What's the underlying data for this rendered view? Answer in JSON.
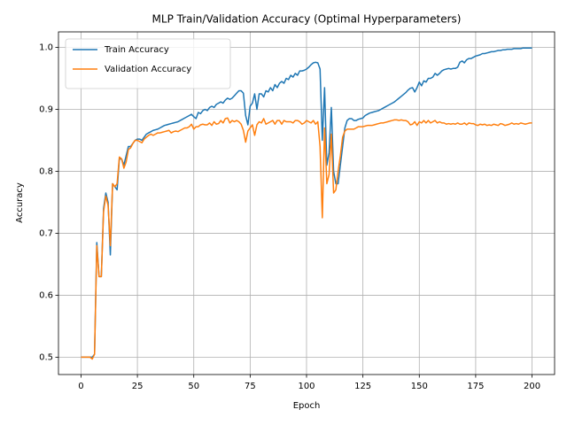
{
  "chart_data": {
    "type": "line",
    "title": "MLP Train/Validation Accuracy (Optimal Hyperparameters)",
    "x_label": "Epoch",
    "y_label": "Accuracy",
    "x": [
      0,
      1,
      2,
      3,
      4,
      5,
      6,
      7,
      8,
      9,
      10,
      11,
      12,
      13,
      14,
      15,
      16,
      17,
      18,
      19,
      20,
      21,
      22,
      23,
      24,
      25,
      26,
      27,
      28,
      29,
      30,
      31,
      32,
      33,
      34,
      35,
      36,
      37,
      38,
      39,
      40,
      41,
      42,
      43,
      44,
      45,
      46,
      47,
      48,
      49,
      50,
      51,
      52,
      53,
      54,
      55,
      56,
      57,
      58,
      59,
      60,
      61,
      62,
      63,
      64,
      65,
      66,
      67,
      68,
      69,
      70,
      71,
      72,
      73,
      74,
      75,
      76,
      77,
      78,
      79,
      80,
      81,
      82,
      83,
      84,
      85,
      86,
      87,
      88,
      89,
      90,
      91,
      92,
      93,
      94,
      95,
      96,
      97,
      98,
      99,
      100,
      101,
      102,
      103,
      104,
      105,
      106,
      107,
      108,
      109,
      110,
      111,
      112,
      113,
      114,
      115,
      116,
      117,
      118,
      119,
      120,
      121,
      122,
      123,
      124,
      125,
      126,
      127,
      128,
      129,
      130,
      131,
      132,
      133,
      134,
      135,
      136,
      137,
      138,
      139,
      140,
      141,
      142,
      143,
      144,
      145,
      146,
      147,
      148,
      149,
      150,
      151,
      152,
      153,
      154,
      155,
      156,
      157,
      158,
      159,
      160,
      161,
      162,
      163,
      164,
      165,
      166,
      167,
      168,
      169,
      170,
      171,
      172,
      173,
      174,
      175,
      176,
      177,
      178,
      179,
      180,
      181,
      182,
      183,
      184,
      185,
      186,
      187,
      188,
      189,
      190,
      191,
      192,
      193,
      194,
      195,
      196,
      197,
      198,
      199,
      200
    ],
    "series": [
      {
        "name": "Train Accuracy",
        "color": "#1f77b4",
        "values": [
          0.5,
          0.5,
          0.5,
          0.5,
          0.5,
          0.5,
          0.505,
          0.685,
          0.63,
          0.63,
          0.74,
          0.765,
          0.75,
          0.665,
          0.78,
          0.775,
          0.77,
          0.82,
          0.82,
          0.81,
          0.825,
          0.84,
          0.84,
          0.845,
          0.85,
          0.852,
          0.852,
          0.85,
          0.855,
          0.86,
          0.862,
          0.864,
          0.866,
          0.867,
          0.868,
          0.87,
          0.872,
          0.874,
          0.875,
          0.876,
          0.877,
          0.878,
          0.879,
          0.88,
          0.882,
          0.884,
          0.886,
          0.888,
          0.89,
          0.892,
          0.888,
          0.885,
          0.895,
          0.893,
          0.898,
          0.9,
          0.898,
          0.903,
          0.905,
          0.903,
          0.908,
          0.91,
          0.912,
          0.91,
          0.915,
          0.918,
          0.916,
          0.918,
          0.922,
          0.926,
          0.93,
          0.93,
          0.926,
          0.89,
          0.875,
          0.905,
          0.91,
          0.925,
          0.9,
          0.925,
          0.925,
          0.92,
          0.93,
          0.928,
          0.935,
          0.93,
          0.94,
          0.935,
          0.942,
          0.945,
          0.942,
          0.95,
          0.948,
          0.955,
          0.952,
          0.958,
          0.955,
          0.962,
          0.962,
          0.963,
          0.965,
          0.968,
          0.972,
          0.975,
          0.976,
          0.975,
          0.965,
          0.85,
          0.935,
          0.81,
          0.83,
          0.903,
          0.8,
          0.78,
          0.78,
          0.81,
          0.84,
          0.87,
          0.882,
          0.885,
          0.885,
          0.882,
          0.882,
          0.884,
          0.885,
          0.886,
          0.89,
          0.892,
          0.894,
          0.895,
          0.896,
          0.897,
          0.898,
          0.9,
          0.902,
          0.904,
          0.906,
          0.908,
          0.91,
          0.912,
          0.915,
          0.918,
          0.921,
          0.924,
          0.927,
          0.931,
          0.934,
          0.935,
          0.928,
          0.935,
          0.944,
          0.938,
          0.946,
          0.944,
          0.95,
          0.95,
          0.952,
          0.958,
          0.955,
          0.958,
          0.962,
          0.964,
          0.965,
          0.966,
          0.965,
          0.966,
          0.966,
          0.968,
          0.976,
          0.978,
          0.975,
          0.98,
          0.982,
          0.982,
          0.984,
          0.986,
          0.987,
          0.988,
          0.99,
          0.99,
          0.991,
          0.992,
          0.993,
          0.993,
          0.994,
          0.995,
          0.995,
          0.996,
          0.996,
          0.997,
          0.997,
          0.997,
          0.998,
          0.998,
          0.998,
          0.998,
          0.999,
          0.999,
          0.999,
          0.999,
          0.999
        ]
      },
      {
        "name": "Validation Accuracy",
        "color": "#ff7f0e",
        "values": [
          0.5,
          0.5,
          0.5,
          0.5,
          0.5,
          0.497,
          0.505,
          0.68,
          0.63,
          0.63,
          0.735,
          0.76,
          0.745,
          0.68,
          0.78,
          0.775,
          0.78,
          0.823,
          0.82,
          0.805,
          0.815,
          0.835,
          0.838,
          0.845,
          0.85,
          0.85,
          0.848,
          0.846,
          0.852,
          0.855,
          0.858,
          0.86,
          0.858,
          0.86,
          0.862,
          0.862,
          0.863,
          0.864,
          0.865,
          0.866,
          0.862,
          0.864,
          0.865,
          0.864,
          0.866,
          0.868,
          0.87,
          0.87,
          0.872,
          0.876,
          0.868,
          0.872,
          0.872,
          0.875,
          0.876,
          0.875,
          0.875,
          0.878,
          0.874,
          0.88,
          0.876,
          0.877,
          0.882,
          0.878,
          0.885,
          0.886,
          0.878,
          0.882,
          0.88,
          0.882,
          0.88,
          0.876,
          0.866,
          0.847,
          0.865,
          0.87,
          0.875,
          0.858,
          0.875,
          0.88,
          0.878,
          0.885,
          0.876,
          0.878,
          0.88,
          0.882,
          0.876,
          0.882,
          0.882,
          0.876,
          0.882,
          0.88,
          0.88,
          0.88,
          0.878,
          0.882,
          0.882,
          0.88,
          0.876,
          0.878,
          0.882,
          0.88,
          0.878,
          0.882,
          0.876,
          0.88,
          0.84,
          0.725,
          0.87,
          0.78,
          0.795,
          0.86,
          0.765,
          0.77,
          0.8,
          0.825,
          0.855,
          0.865,
          0.868,
          0.868,
          0.868,
          0.868,
          0.87,
          0.872,
          0.872,
          0.872,
          0.873,
          0.874,
          0.874,
          0.874,
          0.875,
          0.876,
          0.877,
          0.878,
          0.878,
          0.879,
          0.88,
          0.881,
          0.882,
          0.883,
          0.883,
          0.882,
          0.883,
          0.882,
          0.882,
          0.88,
          0.875,
          0.876,
          0.88,
          0.874,
          0.88,
          0.878,
          0.882,
          0.878,
          0.882,
          0.878,
          0.88,
          0.882,
          0.878,
          0.88,
          0.878,
          0.878,
          0.876,
          0.877,
          0.876,
          0.877,
          0.876,
          0.878,
          0.876,
          0.876,
          0.878,
          0.875,
          0.878,
          0.877,
          0.877,
          0.875,
          0.874,
          0.876,
          0.875,
          0.876,
          0.874,
          0.875,
          0.874,
          0.876,
          0.875,
          0.874,
          0.877,
          0.876,
          0.874,
          0.875,
          0.876,
          0.878,
          0.876,
          0.877,
          0.876,
          0.878,
          0.877,
          0.876,
          0.877,
          0.878,
          0.878
        ]
      }
    ],
    "xlim": [
      -10,
      210
    ],
    "xticks": [
      0,
      25,
      50,
      75,
      100,
      125,
      150,
      175,
      200
    ],
    "ylim": [
      0.472,
      1.025
    ],
    "yticks": [
      0.5,
      0.6,
      0.7,
      0.8,
      0.9,
      {
        "value": 1,
        "label": "1.0"
      }
    ],
    "grid": true,
    "legend": "upper left"
  }
}
